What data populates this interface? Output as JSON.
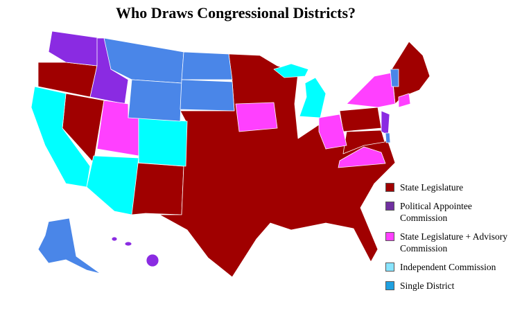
{
  "title": "Who Draws Congressional Districts?",
  "legend": [
    {
      "label": "State Legislature",
      "color": "#a00000"
    },
    {
      "label": "Political Appointee Commission",
      "color": "#7030a0"
    },
    {
      "label": "State Legislature + Advisory Commission",
      "color": "#ff40ff"
    },
    {
      "label": "Independent Commission",
      "color": "#88e4ff"
    },
    {
      "label": "Single District",
      "color": "#1fa0e0"
    }
  ]
}
